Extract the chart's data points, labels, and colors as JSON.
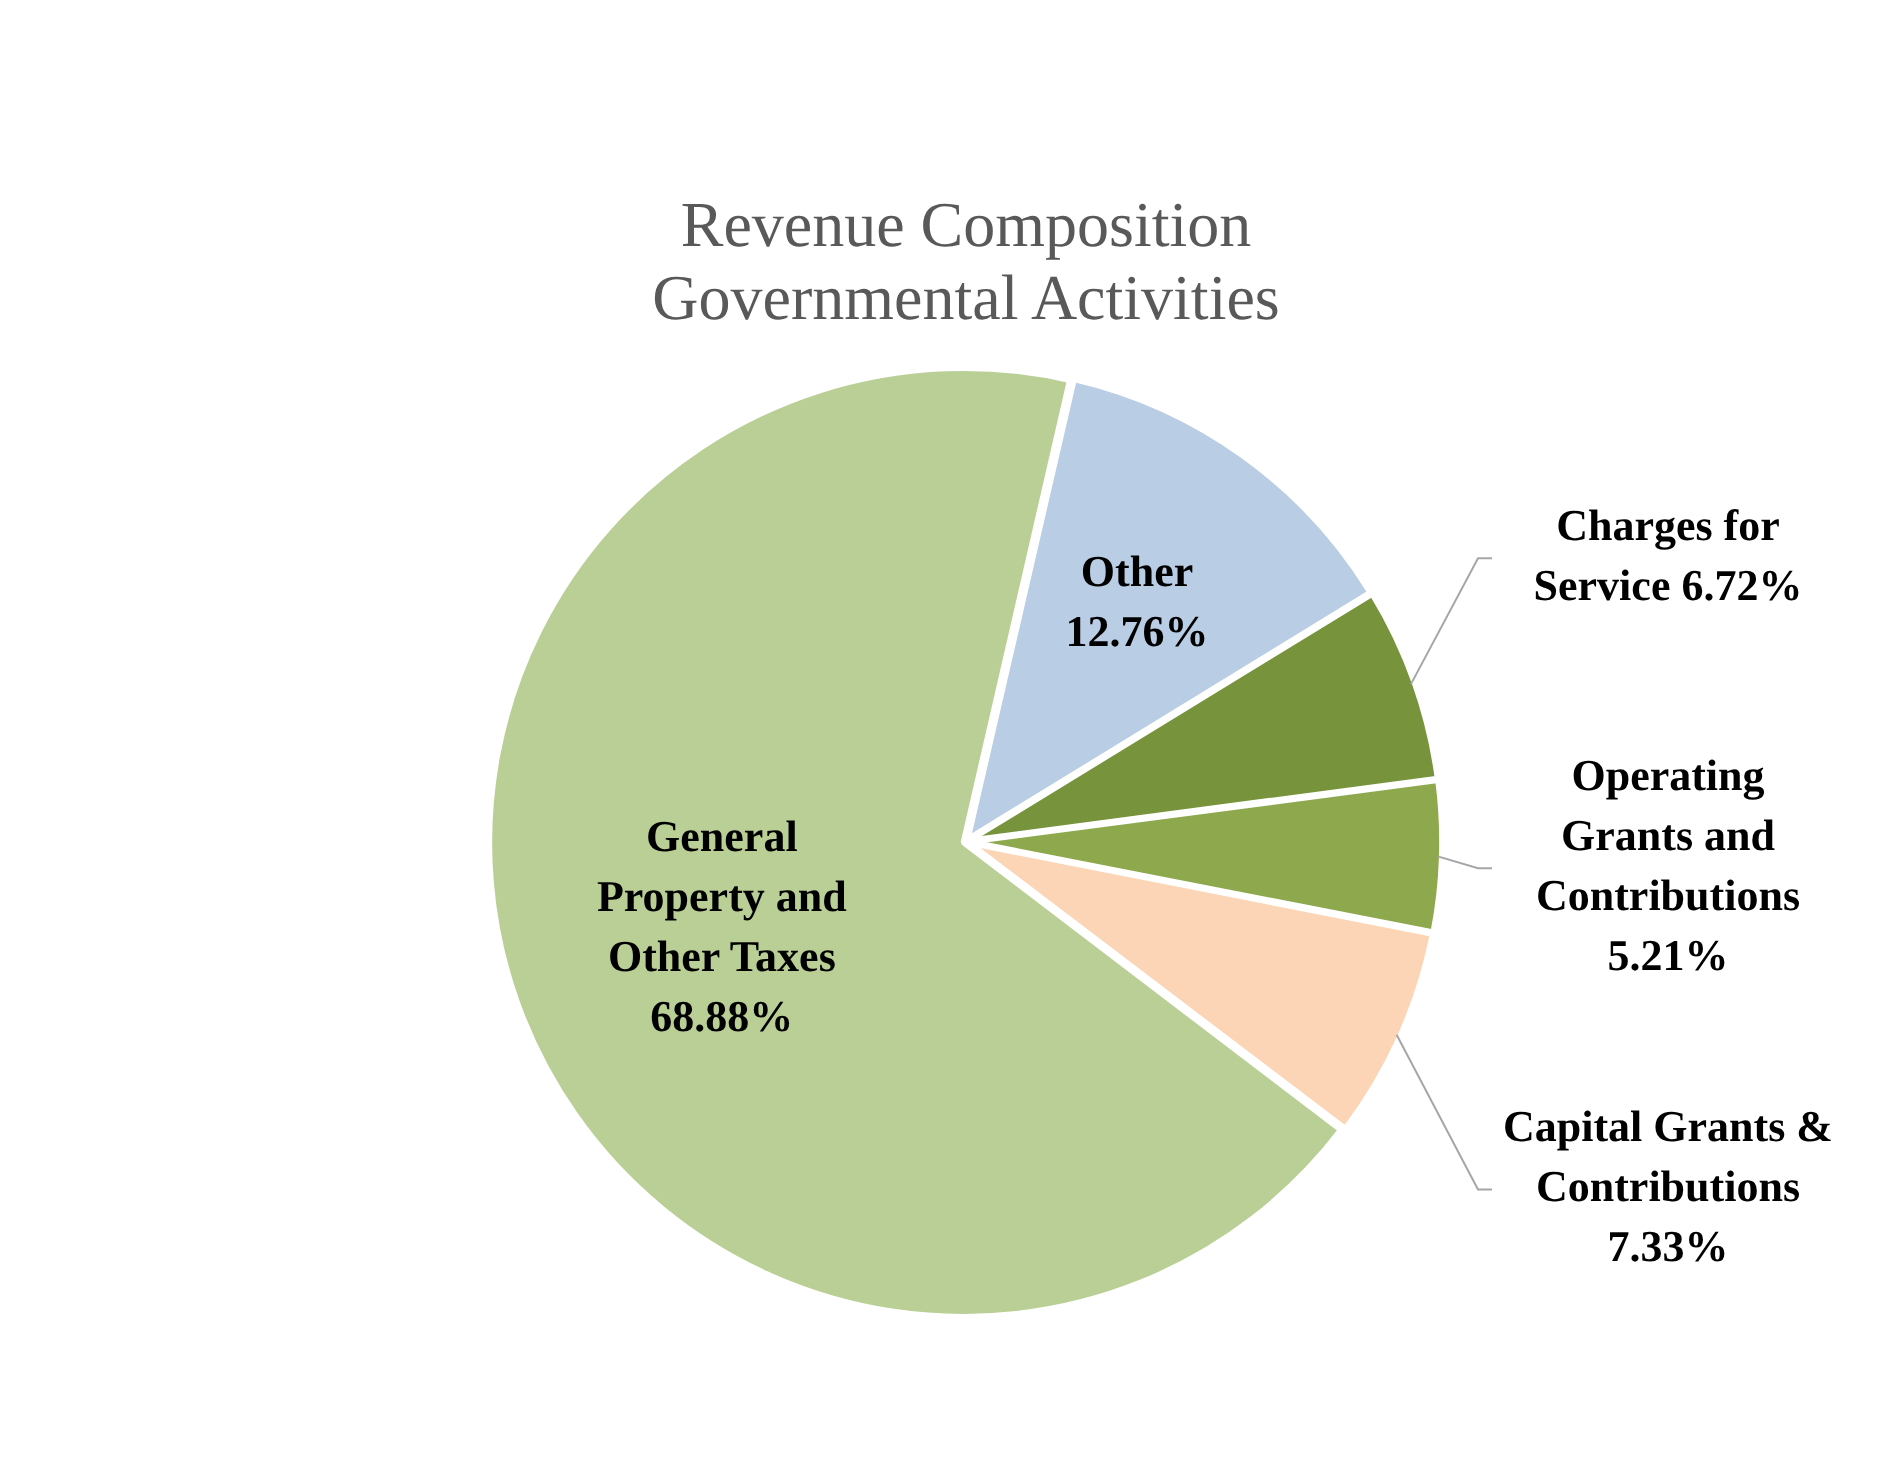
{
  "chart_data": {
    "type": "pie",
    "title": [
      "Revenue Composition",
      "Governmental Activities"
    ],
    "categories": [
      "Other",
      "Charges for Service",
      "Operating Grants and Contributions",
      "Capital Grants & Contributions",
      "General Property and Other Taxes"
    ],
    "values": [
      12.76,
      6.72,
      5.21,
      7.33,
      68.88
    ],
    "value_labels": [
      "12.76%",
      "6.72%",
      "5.21%",
      "7.33%",
      "68.88%"
    ],
    "colors": [
      "#b9cde5",
      "#77933c",
      "#8ea84e",
      "#fbd5b5",
      "#bacf95"
    ],
    "legend": false
  }
}
